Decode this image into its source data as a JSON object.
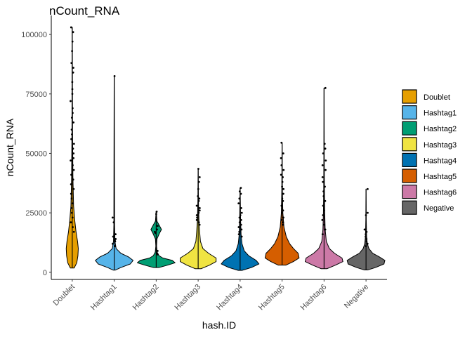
{
  "chart_data": {
    "type": "violin",
    "title": "nCount_RNA",
    "xlabel": "hash.ID",
    "ylabel": "nCount_RNA",
    "ylim": [
      -3000,
      108000
    ],
    "yticks": [
      0,
      25000,
      50000,
      75000,
      100000
    ],
    "ytick_labels": [
      "0",
      "25000",
      "50000",
      "75000",
      "100000"
    ],
    "grid": false,
    "legend_position": "right",
    "categories": [
      "Doublet",
      "Hashtag1",
      "Hashtag2",
      "Hashtag3",
      "Hashtag4",
      "Hashtag5",
      "Hashtag6",
      "Negative"
    ],
    "series": [
      {
        "name": "Doublet",
        "color": "#E69F00",
        "min": 1800,
        "max": 103000,
        "violin": [
          [
            1800,
            0.1
          ],
          [
            4000,
            0.24
          ],
          [
            7000,
            0.3
          ],
          [
            10000,
            0.32
          ],
          [
            13000,
            0.28
          ],
          [
            17000,
            0.2
          ],
          [
            22000,
            0.13
          ],
          [
            28000,
            0.07
          ],
          [
            40000,
            0.035
          ],
          [
            60000,
            0.015
          ],
          [
            103000,
            0.004
          ]
        ],
        "points": [
          103000,
          101000,
          97000,
          93000,
          88000,
          86000,
          84000,
          80000,
          77000,
          75000,
          72000,
          69000,
          67000,
          65000,
          63000,
          60000,
          58000,
          56000,
          54000,
          52000,
          50000,
          48000,
          47000,
          45000,
          43000,
          41000,
          39000,
          37000,
          35000,
          33000,
          31000,
          29000,
          27000,
          25000,
          23000,
          21000,
          19000,
          17000
        ]
      },
      {
        "name": "Hashtag1",
        "color": "#56B4E9",
        "min": 900,
        "max": 82500,
        "violin": [
          [
            900,
            0.05
          ],
          [
            2000,
            0.35
          ],
          [
            3500,
            0.85
          ],
          [
            5000,
            1.0
          ],
          [
            6500,
            0.75
          ],
          [
            8000,
            0.35
          ],
          [
            10000,
            0.1
          ],
          [
            13000,
            0.04
          ],
          [
            20000,
            0.02
          ],
          [
            82500,
            0.004
          ]
        ],
        "points": [
          82500,
          23000,
          21000,
          16000,
          15000,
          14000,
          13500,
          13000,
          12000,
          11000
        ]
      },
      {
        "name": "Hashtag2",
        "color": "#009E73",
        "min": 2000,
        "max": 25500,
        "violin": [
          [
            2000,
            0.15
          ],
          [
            3000,
            0.6
          ],
          [
            4000,
            1.0
          ],
          [
            5000,
            0.85
          ],
          [
            6000,
            0.35
          ],
          [
            7000,
            0.15
          ],
          [
            8500,
            0.05
          ],
          [
            11000,
            0.02
          ],
          [
            14000,
            0.04
          ],
          [
            16500,
            0.18
          ],
          [
            18000,
            0.28
          ],
          [
            19500,
            0.18
          ],
          [
            21500,
            0.04
          ],
          [
            25500,
            0.005
          ]
        ],
        "points": [
          25500,
          24500,
          19500,
          18000,
          17000,
          16500,
          9000,
          8000,
          7500
        ]
      },
      {
        "name": "Hashtag3",
        "color": "#F0E442",
        "min": 1500,
        "max": 43500,
        "violin": [
          [
            1500,
            0.15
          ],
          [
            3000,
            0.6
          ],
          [
            4500,
            0.95
          ],
          [
            6000,
            0.95
          ],
          [
            8000,
            0.55
          ],
          [
            10000,
            0.25
          ],
          [
            13000,
            0.12
          ],
          [
            17000,
            0.08
          ],
          [
            22000,
            0.04
          ],
          [
            30000,
            0.015
          ],
          [
            43500,
            0.003
          ]
        ],
        "points": [
          43500,
          40000,
          38000,
          35000,
          32000,
          31000,
          30000,
          28000,
          27000,
          26000,
          25000,
          24000,
          23000,
          22000,
          21000,
          20000
        ]
      },
      {
        "name": "Hashtag4",
        "color": "#0072B2",
        "min": 800,
        "max": 35500,
        "violin": [
          [
            800,
            0.1
          ],
          [
            2000,
            0.6
          ],
          [
            3500,
            1.0
          ],
          [
            5000,
            0.85
          ],
          [
            7000,
            0.45
          ],
          [
            9000,
            0.22
          ],
          [
            12000,
            0.1
          ],
          [
            16000,
            0.05
          ],
          [
            22000,
            0.025
          ],
          [
            30000,
            0.012
          ],
          [
            35500,
            0.003
          ]
        ],
        "points": [
          35500,
          34000,
          33000,
          31000,
          29000,
          27000,
          25000,
          24000,
          23000,
          22000,
          21000,
          20000,
          19000,
          18000,
          17000,
          16000,
          15000
        ]
      },
      {
        "name": "Hashtag5",
        "color": "#D55E00",
        "min": 3000,
        "max": 54500,
        "violin": [
          [
            3000,
            0.2
          ],
          [
            4500,
            0.6
          ],
          [
            6000,
            0.9
          ],
          [
            8000,
            0.85
          ],
          [
            10000,
            0.6
          ],
          [
            12000,
            0.4
          ],
          [
            15000,
            0.22
          ],
          [
            19000,
            0.1
          ],
          [
            25000,
            0.04
          ],
          [
            35000,
            0.015
          ],
          [
            54500,
            0.003
          ]
        ],
        "points": [
          54500,
          50000,
          48000,
          45000,
          43000,
          41000,
          40000,
          38000,
          36000,
          35000,
          33000,
          31000,
          30000,
          28000,
          26000,
          25000,
          23000,
          22000,
          21000,
          20000
        ]
      },
      {
        "name": "Hashtag6",
        "color": "#CC79A7",
        "min": 1500,
        "max": 77500,
        "violin": [
          [
            1500,
            0.15
          ],
          [
            3000,
            0.6
          ],
          [
            4500,
            1.0
          ],
          [
            6000,
            0.95
          ],
          [
            8000,
            0.55
          ],
          [
            10000,
            0.28
          ],
          [
            13000,
            0.12
          ],
          [
            18000,
            0.06
          ],
          [
            25000,
            0.035
          ],
          [
            35000,
            0.02
          ],
          [
            50000,
            0.01
          ],
          [
            77500,
            0.003
          ]
        ],
        "points": [
          77500,
          54000,
          52000,
          50000,
          47000,
          45000,
          43000,
          40000,
          38000,
          36000,
          34000,
          32000,
          30000,
          28000,
          26000,
          24000,
          22000,
          20000,
          18000,
          16000
        ]
      },
      {
        "name": "Negative",
        "color": "#666666",
        "min": 1000,
        "max": 35000,
        "violin": [
          [
            1000,
            0.1
          ],
          [
            2000,
            0.5
          ],
          [
            3500,
            0.95
          ],
          [
            5000,
            1.0
          ],
          [
            6500,
            0.7
          ],
          [
            8000,
            0.35
          ],
          [
            10000,
            0.15
          ],
          [
            12000,
            0.07
          ],
          [
            15000,
            0.03
          ],
          [
            22000,
            0.012
          ],
          [
            35000,
            0.003
          ]
        ],
        "points": [
          35000,
          25000,
          24000,
          18000,
          17000,
          16000,
          15000,
          14000,
          13000,
          12000,
          11000
        ]
      }
    ]
  }
}
